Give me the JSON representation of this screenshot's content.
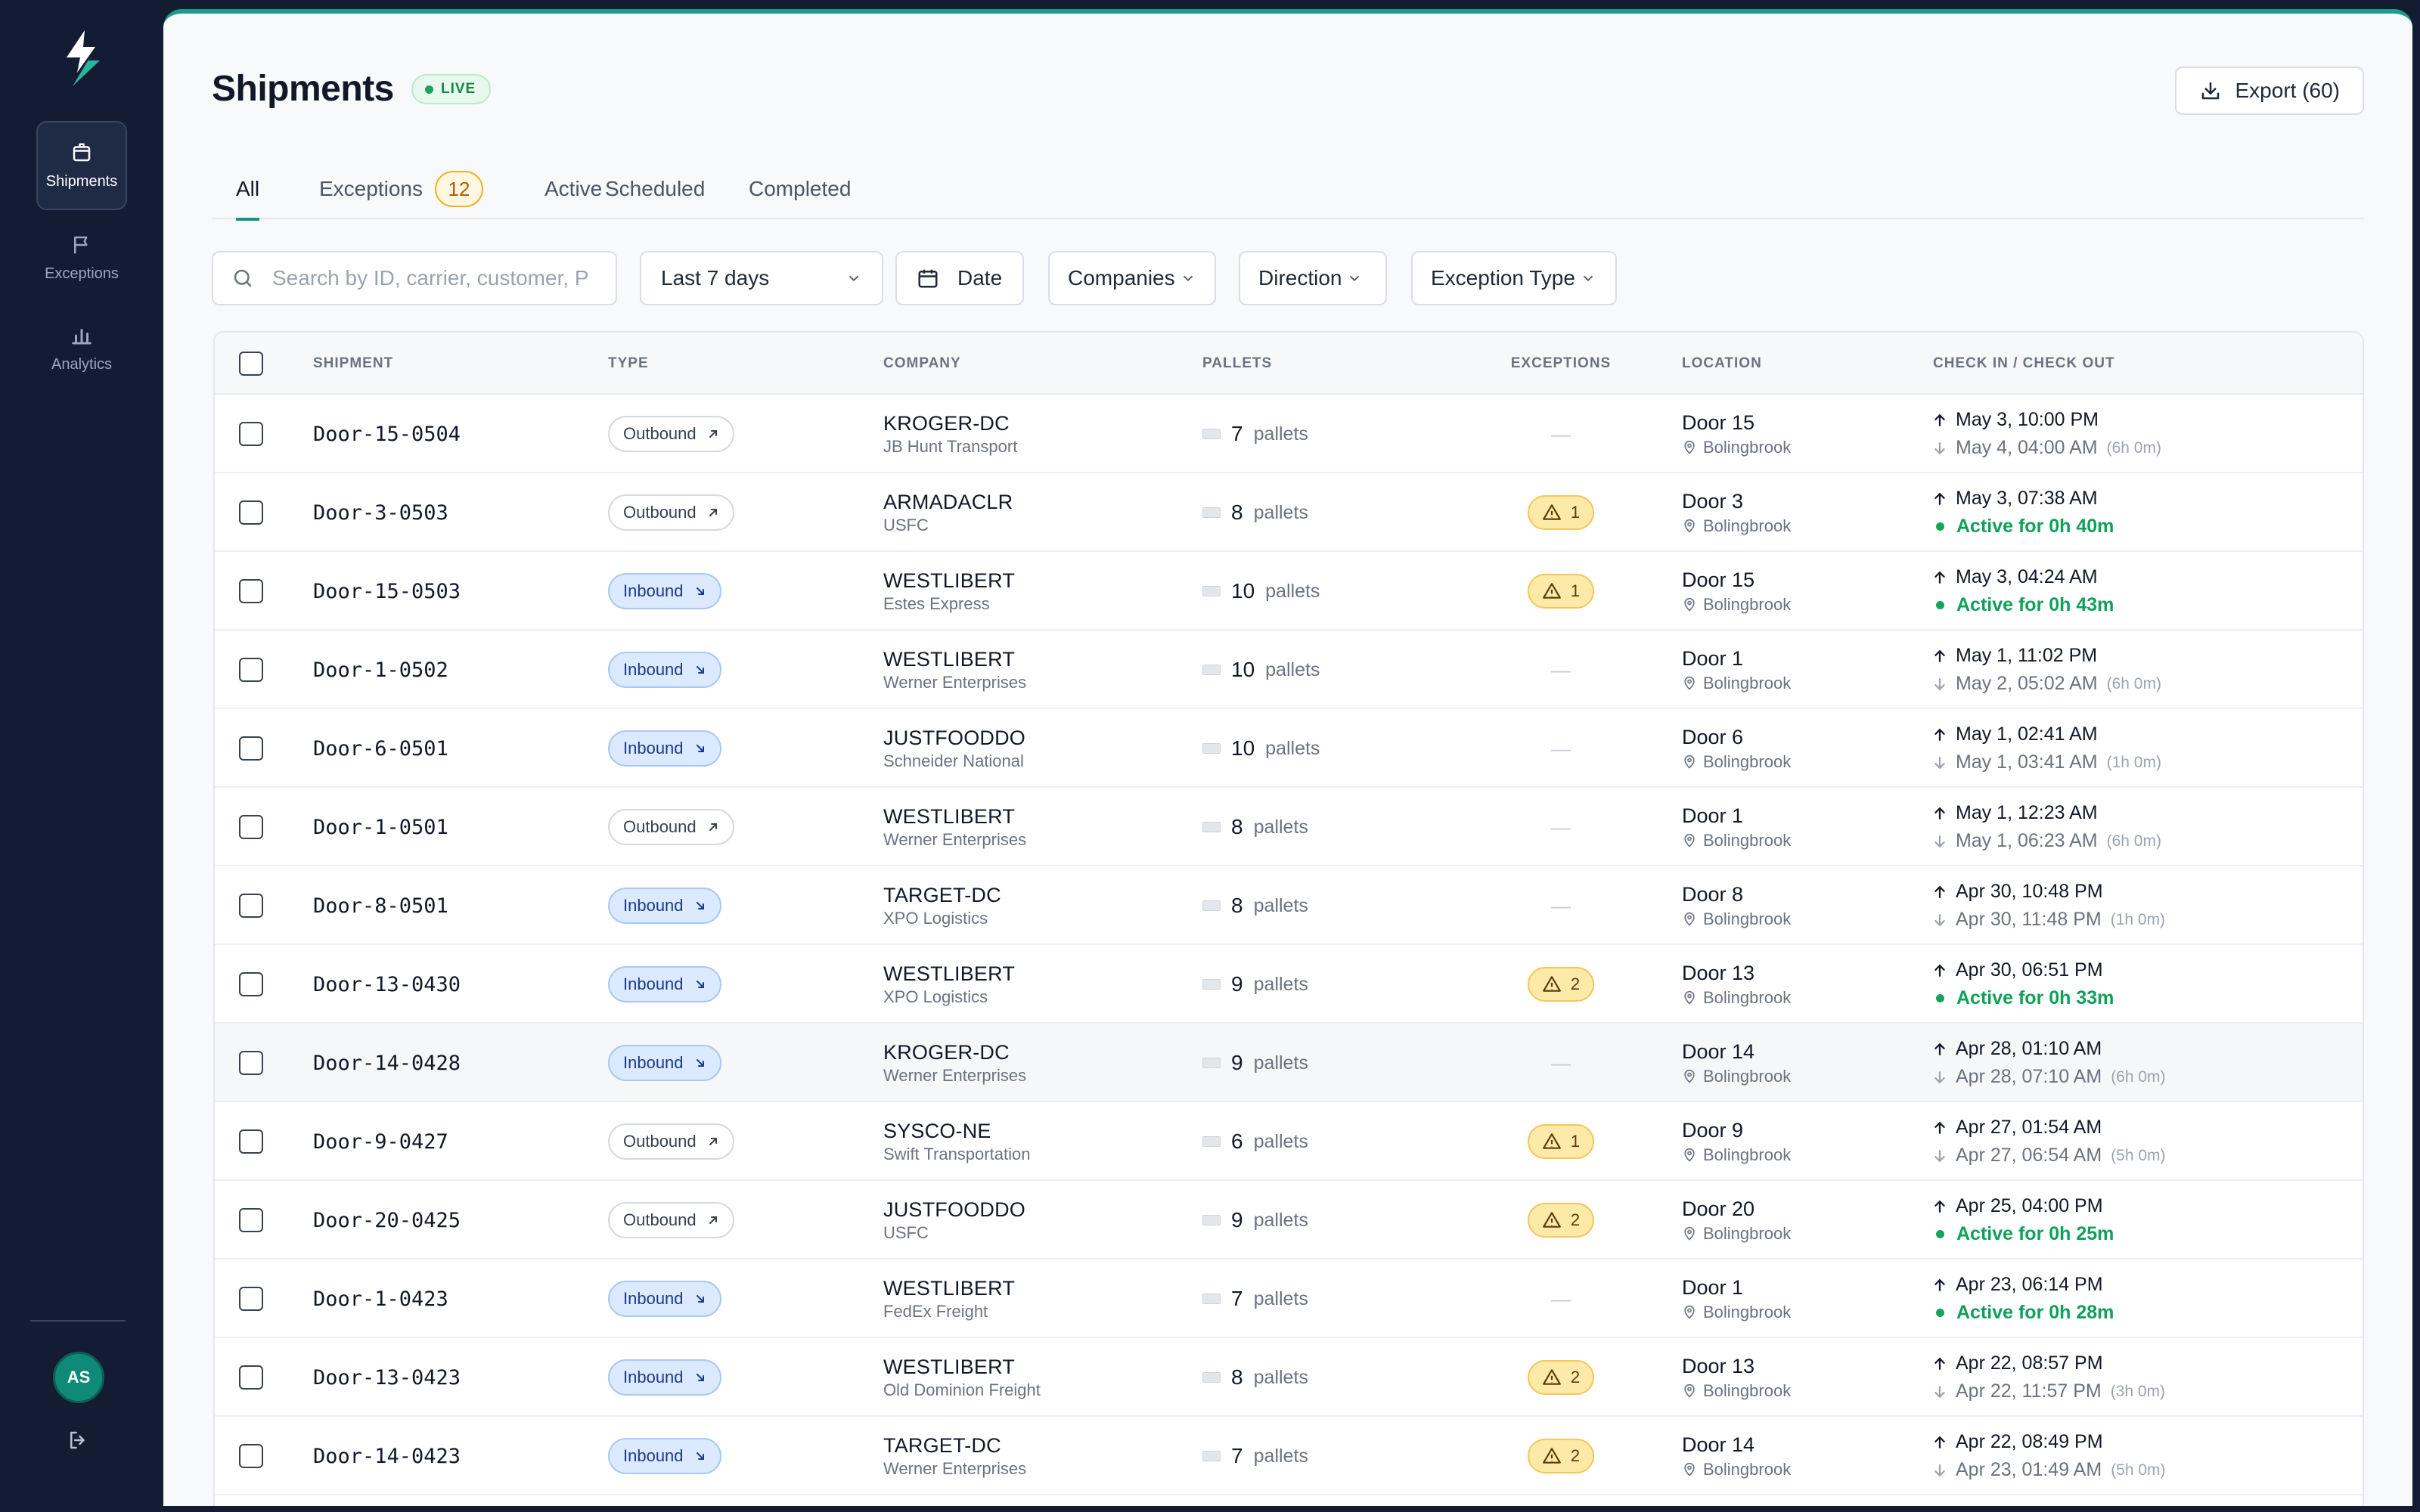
{
  "sidebar": {
    "items": [
      {
        "label": "Shipments",
        "icon": "box-icon",
        "active": true
      },
      {
        "label": "Exceptions",
        "icon": "flag-icon",
        "active": false
      },
      {
        "label": "Analytics",
        "icon": "bar-chart-icon",
        "active": false
      }
    ],
    "avatar_initials": "AS"
  },
  "header": {
    "title": "Shipments",
    "live_label": "LIVE",
    "export_label": "Export (60)"
  },
  "tabs": [
    {
      "label": "All",
      "active": true
    },
    {
      "label": "Exceptions",
      "count": "12"
    },
    {
      "label": "Active"
    },
    {
      "label": "Scheduled"
    },
    {
      "label": "Completed"
    }
  ],
  "filters": {
    "search_placeholder": "Search by ID, carrier, customer, PO...",
    "range_value": "Last 7 days",
    "date_label": "Date",
    "companies_label": "Companies",
    "direction_label": "Direction",
    "exception_type_label": "Exception Type"
  },
  "table": {
    "columns": [
      "SHIPMENT",
      "TYPE",
      "COMPANY",
      "PALLETS",
      "EXCEPTIONS",
      "LOCATION",
      "CHECK IN / CHECK OUT"
    ],
    "pallets_unit": "pallets",
    "city": "Bolingbrook",
    "rows": [
      {
        "id": "Door-15-0504",
        "type": "Outbound",
        "company": "KROGER-DC",
        "carrier": "JB Hunt Transport",
        "pallets": "7",
        "exceptions": "—",
        "door": "Door 15",
        "check_in": "May 3, 10:00 PM",
        "check_out": "May 4, 04:00 AM",
        "duration": "(6h 0m)"
      },
      {
        "id": "Door-3-0503",
        "type": "Outbound",
        "company": "ARMADACLR",
        "carrier": "USFC",
        "pallets": "8",
        "exceptions": "1",
        "door": "Door 3",
        "check_in": "May 3, 07:38 AM",
        "active": "Active for 0h 40m"
      },
      {
        "id": "Door-15-0503",
        "type": "Inbound",
        "company": "WESTLIBERT",
        "carrier": "Estes Express",
        "pallets": "10",
        "exceptions": "1",
        "door": "Door 15",
        "check_in": "May 3, 04:24 AM",
        "active": "Active for 0h 43m"
      },
      {
        "id": "Door-1-0502",
        "type": "Inbound",
        "company": "WESTLIBERT",
        "carrier": "Werner Enterprises",
        "pallets": "10",
        "exceptions": "—",
        "door": "Door 1",
        "check_in": "May 1, 11:02 PM",
        "check_out": "May 2, 05:02 AM",
        "duration": "(6h 0m)"
      },
      {
        "id": "Door-6-0501",
        "type": "Inbound",
        "company": "JUSTFOODDO",
        "carrier": "Schneider National",
        "pallets": "10",
        "exceptions": "—",
        "door": "Door 6",
        "check_in": "May 1, 02:41 AM",
        "check_out": "May 1, 03:41 AM",
        "duration": "(1h 0m)"
      },
      {
        "id": "Door-1-0501",
        "type": "Outbound",
        "company": "WESTLIBERT",
        "carrier": "Werner Enterprises",
        "pallets": "8",
        "exceptions": "—",
        "door": "Door 1",
        "check_in": "May 1, 12:23 AM",
        "check_out": "May 1, 06:23 AM",
        "duration": "(6h 0m)"
      },
      {
        "id": "Door-8-0501",
        "type": "Inbound",
        "company": "TARGET-DC",
        "carrier": "XPO Logistics",
        "pallets": "8",
        "exceptions": "—",
        "door": "Door 8",
        "check_in": "Apr 30, 10:48 PM",
        "check_out": "Apr 30, 11:48 PM",
        "duration": "(1h 0m)"
      },
      {
        "id": "Door-13-0430",
        "type": "Inbound",
        "company": "WESTLIBERT",
        "carrier": "XPO Logistics",
        "pallets": "9",
        "exceptions": "2",
        "door": "Door 13",
        "check_in": "Apr 30, 06:51 PM",
        "active": "Active for 0h 33m"
      },
      {
        "id": "Door-14-0428",
        "type": "Inbound",
        "company": "KROGER-DC",
        "carrier": "Werner Enterprises",
        "pallets": "9",
        "exceptions": "—",
        "door": "Door 14",
        "check_in": "Apr 28, 01:10 AM",
        "check_out": "Apr 28, 07:10 AM",
        "duration": "(6h 0m)",
        "hover": true
      },
      {
        "id": "Door-9-0427",
        "type": "Outbound",
        "company": "SYSCO-NE",
        "carrier": "Swift Transportation",
        "pallets": "6",
        "exceptions": "1",
        "door": "Door 9",
        "check_in": "Apr 27, 01:54 AM",
        "check_out": "Apr 27, 06:54 AM",
        "duration": "(5h 0m)"
      },
      {
        "id": "Door-20-0425",
        "type": "Outbound",
        "company": "JUSTFOODDO",
        "carrier": "USFC",
        "pallets": "9",
        "exceptions": "2",
        "door": "Door 20",
        "check_in": "Apr 25, 04:00 PM",
        "active": "Active for 0h 25m"
      },
      {
        "id": "Door-1-0423",
        "type": "Inbound",
        "company": "WESTLIBERT",
        "carrier": "FedEx Freight",
        "pallets": "7",
        "exceptions": "—",
        "door": "Door 1",
        "check_in": "Apr 23, 06:14 PM",
        "active": "Active for 0h 28m"
      },
      {
        "id": "Door-13-0423",
        "type": "Inbound",
        "company": "WESTLIBERT",
        "carrier": "Old Dominion Freight",
        "pallets": "8",
        "exceptions": "2",
        "door": "Door 13",
        "check_in": "Apr 22, 08:57 PM",
        "check_out": "Apr 22, 11:57 PM",
        "duration": "(3h 0m)"
      },
      {
        "id": "Door-14-0423",
        "type": "Inbound",
        "company": "TARGET-DC",
        "carrier": "Werner Enterprises",
        "pallets": "7",
        "exceptions": "2",
        "door": "Door 14",
        "check_in": "Apr 22, 08:49 PM",
        "check_out": "Apr 23, 01:49 AM",
        "duration": "(5h 0m)"
      }
    ]
  },
  "colors": {
    "accent": "#15928a",
    "sidebar_bg": "#141c33",
    "active_green": "#10a05a",
    "exception_badge": "#fde9a8"
  }
}
